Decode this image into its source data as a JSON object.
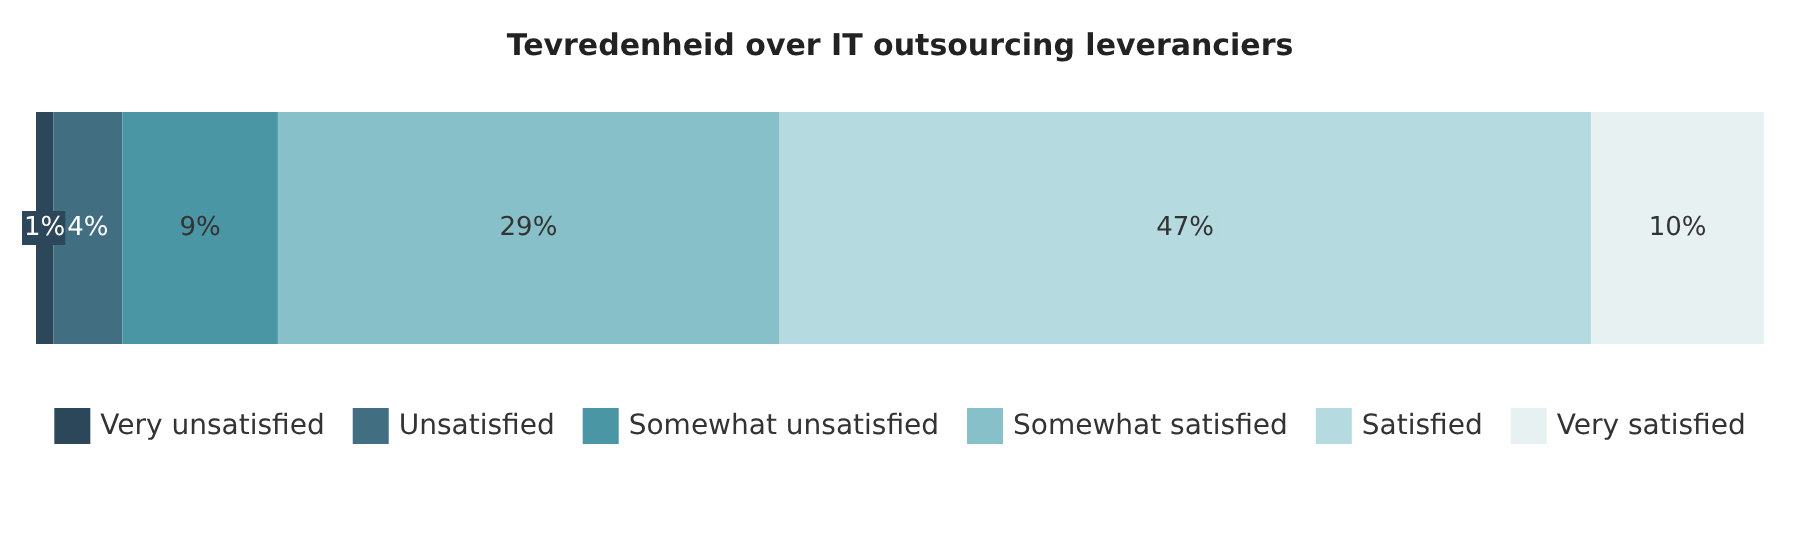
{
  "chart_data": {
    "type": "bar",
    "title": "Tevredenheid over IT outsourcing leveranciers",
    "orientation": "horizontal",
    "stacked": true,
    "categories": [
      null
    ],
    "xlim": [
      0,
      100
    ],
    "legend": "bottom",
    "series": [
      {
        "name": "Very unsatisfied",
        "color": "#2d475a",
        "values": [
          1
        ],
        "value_labels": [
          "1%"
        ]
      },
      {
        "name": "Unsatisfied",
        "color": "#426e82",
        "values": [
          4
        ],
        "value_labels": [
          "4%"
        ]
      },
      {
        "name": "Somewhat unsatisfied",
        "color": "#4a96a5",
        "values": [
          9
        ],
        "value_labels": [
          "9%"
        ]
      },
      {
        "name": "Somewhat satisfied",
        "color": "#88c0ca",
        "values": [
          29
        ],
        "value_labels": [
          "29%"
        ]
      },
      {
        "name": "Satisfied",
        "color": "#b5dadf",
        "values": [
          47
        ],
        "value_labels": [
          "47%"
        ]
      },
      {
        "name": "Very satisfied",
        "color": "#e8f1f2",
        "values": [
          10
        ],
        "value_labels": [
          "10%"
        ]
      }
    ]
  }
}
